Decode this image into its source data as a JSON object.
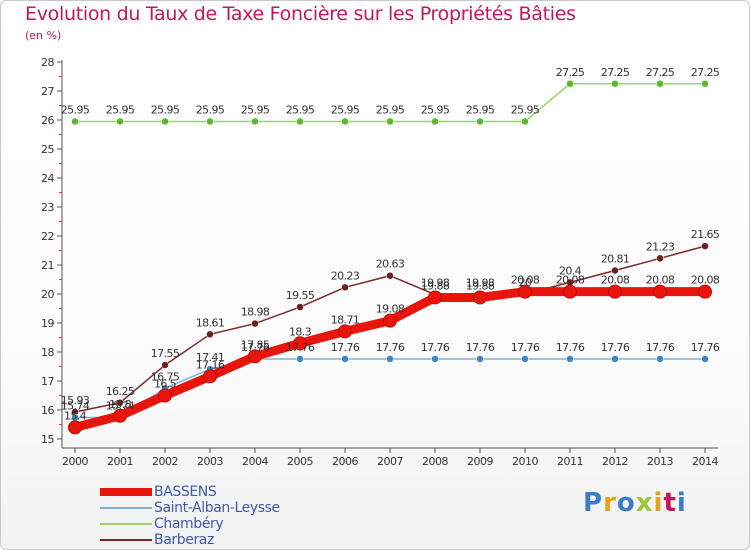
{
  "header": {
    "title": "Evolution du Taux de Taxe Foncière sur les Propriétés Bâties",
    "unit": "(en %)"
  },
  "brand": {
    "text": "Proxiti",
    "letter_colors": [
      "#3b7dc4",
      "#e8a21a",
      "#3b7dc4",
      "#9bc53d",
      "#e8a21a",
      "#c2185b",
      "#3b7dc4"
    ]
  },
  "chart_data": {
    "type": "line",
    "title": "Evolution du Taux de Taxe Foncière sur les Propriétés Bâties",
    "ylabel": "(en %)",
    "xlabel": "",
    "x": [
      "2000",
      "2001",
      "2002",
      "2003",
      "2004",
      "2005",
      "2006",
      "2007",
      "2008",
      "2009",
      "2010",
      "2011",
      "2012",
      "2013",
      "2014"
    ],
    "ylim": [
      15,
      28
    ],
    "yticks": [
      15,
      16,
      17,
      18,
      19,
      20,
      21,
      22,
      23,
      24,
      25,
      26,
      27,
      28
    ],
    "grid": false,
    "legend_position": "bottom-left",
    "series": [
      {
        "name": "BASSENS",
        "color": "#e8150d",
        "marker_color": "#e8150d",
        "thick": true,
        "values": [
          15.4,
          15.8,
          16.5,
          17.16,
          17.85,
          18.3,
          18.71,
          19.08,
          19.88,
          19.88,
          20.08,
          20.08,
          20.08,
          20.08,
          20.08
        ],
        "labels": [
          "15.4",
          "15.8",
          "16.5",
          "17.16",
          "17.85",
          "18.3",
          "18.71",
          "19.08",
          "19.88",
          "19.88",
          "20.08",
          "20.08",
          "20.08",
          "20.08",
          "20.08"
        ]
      },
      {
        "name": "Saint-Alban-Leysse",
        "color": "#7fb2dc",
        "marker_color": "#3c86c6",
        "thick": false,
        "values": [
          15.74,
          15.74,
          16.75,
          17.41,
          17.76,
          17.76,
          17.76,
          17.76,
          17.76,
          17.76,
          17.76,
          17.76,
          17.76,
          17.76,
          17.76
        ],
        "labels": [
          "15.74",
          "15.74",
          "16.75",
          "17.41",
          "17.76",
          "17.76",
          "17.76",
          "17.76",
          "17.76",
          "17.76",
          "17.76",
          "17.76",
          "17.76",
          "17.76",
          "17.76"
        ]
      },
      {
        "name": "Chambéry",
        "color": "#9bd36b",
        "marker_color": "#5cb82e",
        "thick": false,
        "values": [
          25.95,
          25.95,
          25.95,
          25.95,
          25.95,
          25.95,
          25.95,
          25.95,
          25.95,
          25.95,
          25.95,
          27.25,
          27.25,
          27.25,
          27.25
        ],
        "labels": [
          "25.95",
          "25.95",
          "25.95",
          "25.95",
          "25.95",
          "25.95",
          "25.95",
          "25.95",
          "25.95",
          "25.95",
          "25.95",
          "27.25",
          "27.25",
          "27.25",
          "27.25"
        ]
      },
      {
        "name": "Barberaz",
        "color": "#7a2a2a",
        "marker_color": "#6e1f1f",
        "thick": false,
        "values": [
          15.93,
          16.25,
          17.55,
          18.61,
          18.98,
          19.55,
          20.23,
          20.63,
          19.98,
          19.98,
          20.0,
          20.4,
          20.81,
          21.23,
          21.65
        ],
        "labels": [
          "15.93",
          "16.25",
          "17.55",
          "18.61",
          "18.98",
          "19.55",
          "20.23",
          "20.63",
          "19.98",
          "19.98",
          "20",
          "20.4",
          "20.81",
          "21.23",
          "21.65"
        ]
      }
    ]
  }
}
